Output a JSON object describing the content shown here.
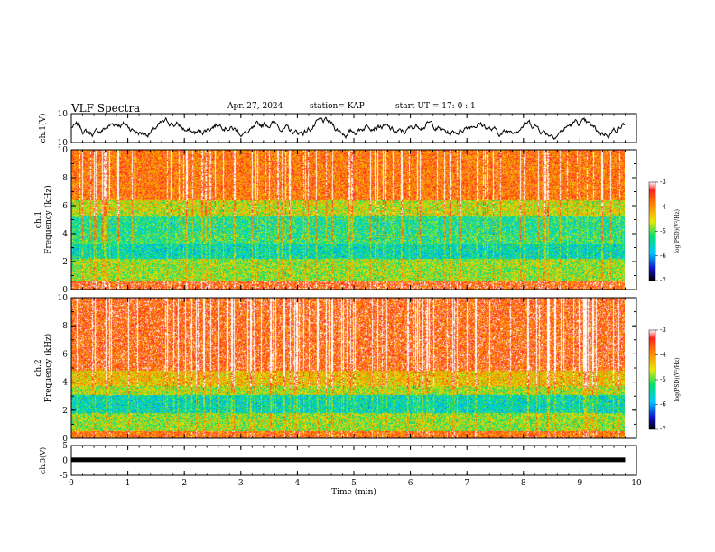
{
  "header": {
    "title": "VLF Spectra",
    "date": "Apr. 27, 2024",
    "station": "station= KAP",
    "start_ut": "start  UT =   17: 0  : 1"
  },
  "chart_data": [
    {
      "type": "line",
      "ylabel": "ch.1(V)",
      "ylim": [
        -10,
        10
      ],
      "yticks": [
        "10",
        "-10"
      ],
      "xlim": [
        0,
        10
      ],
      "x_range_data": [
        0,
        9.8
      ],
      "description_level": "noisy waveform centered near 0 V with excursions to about +/-5 V"
    },
    {
      "type": "heatmap",
      "channel_label": "ch.1",
      "ylabel": "Frequency  (kHz)",
      "ylim": [
        0,
        10
      ],
      "yticks": [
        "0",
        "2",
        "4",
        "6",
        "8",
        "10"
      ],
      "xlim": [
        0,
        10
      ],
      "x_range_data": [
        0,
        9.8
      ],
      "colorbar": {
        "label": "log(PSD)(V²/Hz)",
        "range": [
          -7,
          -3
        ],
        "ticks": [
          "-3",
          "-4",
          "-5",
          "-6",
          "-7"
        ]
      },
      "bands": [
        {
          "f": [
            0,
            0.6
          ],
          "level": -3.6
        },
        {
          "f": [
            0.6,
            2.2
          ],
          "level": -4.8
        },
        {
          "f": [
            2.2,
            3.3
          ],
          "level": -5.5
        },
        {
          "f": [
            3.3,
            4.0
          ],
          "level": -5.2
        },
        {
          "f": [
            4.0,
            5.2
          ],
          "level": -5.3
        },
        {
          "f": [
            5.2,
            6.4
          ],
          "level": -4.6
        },
        {
          "f": [
            6.4,
            10
          ],
          "level": -3.8
        }
      ]
    },
    {
      "type": "heatmap",
      "channel_label": "ch.2",
      "ylabel": "Frequency  (kHz)",
      "ylim": [
        0,
        10
      ],
      "yticks": [
        "0",
        "2",
        "4",
        "6",
        "8",
        "10"
      ],
      "xlim": [
        0,
        10
      ],
      "x_range_data": [
        0,
        9.8
      ],
      "colorbar": {
        "label": "log(PSD)(V²/Hz)",
        "range": [
          -7,
          -3
        ],
        "ticks": [
          "-3",
          "-4",
          "-5",
          "-6",
          "-7"
        ]
      },
      "bands": [
        {
          "f": [
            0,
            0.5
          ],
          "level": -3.8
        },
        {
          "f": [
            0.5,
            1.8
          ],
          "level": -4.8
        },
        {
          "f": [
            1.8,
            3.1
          ],
          "level": -5.5
        },
        {
          "f": [
            3.1,
            3.7
          ],
          "level": -4.7
        },
        {
          "f": [
            3.7,
            4.8
          ],
          "level": -4.3
        },
        {
          "f": [
            4.8,
            10
          ],
          "level": -3.6
        }
      ]
    },
    {
      "type": "line",
      "ylabel": "ch.3(V)",
      "ylim": [
        -5,
        5
      ],
      "yticks": [
        "5",
        "0",
        "-5"
      ],
      "xlim": [
        0,
        10
      ],
      "x_range_data": [
        0,
        9.8
      ],
      "level_V": 0.2,
      "xlabel": "Time  (min)",
      "xticks": [
        "0",
        "1",
        "2",
        "3",
        "4",
        "5",
        "6",
        "7",
        "8",
        "9",
        "10"
      ]
    }
  ]
}
